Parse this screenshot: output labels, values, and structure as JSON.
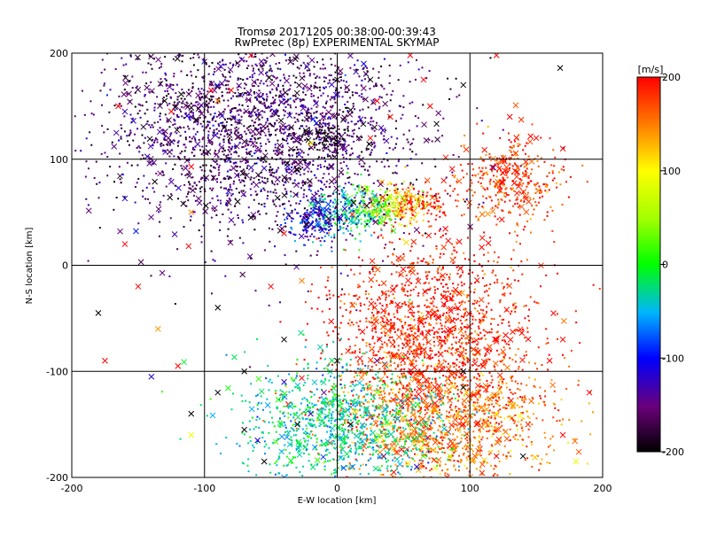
{
  "chart_data": {
    "type": "scatter",
    "title": "Tromsø 20171205 00:38:00-00:39:43",
    "subtitle": "RwPretec (8p) EXPERIMENTAL SKYMAP",
    "xlabel": "E-W location [km]",
    "ylabel": "N-S location [km]",
    "xlim": [
      -200,
      200
    ],
    "ylim": [
      -200,
      200
    ],
    "xticks": [
      "-200",
      "-100",
      "0",
      "100",
      "200"
    ],
    "yticks": [
      "-200",
      "-100",
      "0",
      "100",
      "200"
    ],
    "grid": true,
    "colorbar": {
      "label": "[m/s]",
      "range": [
        -200,
        200
      ],
      "ticks": [
        "-200",
        "-100",
        "0",
        "100",
        "200"
      ],
      "colormap": "rainbow"
    },
    "clusters": [
      {
        "cx": 60,
        "cy": 58,
        "sx": 14,
        "sy": 8,
        "v": 190
      },
      {
        "cx": 45,
        "cy": 55,
        "sx": 10,
        "sy": 10,
        "v": 110
      },
      {
        "cx": 28,
        "cy": 55,
        "sx": 12,
        "sy": 10,
        "v": 20
      },
      {
        "cx": 5,
        "cy": 48,
        "sx": 14,
        "sy": 12,
        "v": -40
      },
      {
        "cx": -15,
        "cy": 45,
        "sx": 12,
        "sy": 12,
        "v": -110
      },
      {
        "cx": -8,
        "cy": 120,
        "sx": 8,
        "sy": 6,
        "v": -200
      },
      {
        "cx": 130,
        "cy": 80,
        "sx": 20,
        "sy": 20,
        "v": 180
      },
      {
        "cx": 70,
        "cy": -70,
        "sx": 40,
        "sy": 50,
        "v": 190
      },
      {
        "cx": 80,
        "cy": -150,
        "sx": 40,
        "sy": 30,
        "v": 150
      },
      {
        "cx": -60,
        "cy": 130,
        "sx": 60,
        "sy": 50,
        "v": -160
      },
      {
        "cx": 0,
        "cy": -150,
        "sx": 40,
        "sy": 30,
        "v": -30
      }
    ],
    "points": [
      {
        "x": -130,
        "y": 155,
        "v": -200,
        "m": "x"
      },
      {
        "x": -165,
        "y": 150,
        "v": 200,
        "m": "x"
      },
      {
        "x": -125,
        "y": 145,
        "v": 200,
        "m": "x"
      },
      {
        "x": -110,
        "y": 140,
        "v": -140,
        "m": "x"
      },
      {
        "x": -95,
        "y": 165,
        "v": 200,
        "m": "x"
      },
      {
        "x": -80,
        "y": 165,
        "v": 200,
        "m": "x"
      },
      {
        "x": -90,
        "y": 155,
        "v": 140,
        "m": "x"
      },
      {
        "x": -65,
        "y": 198,
        "v": 200,
        "m": "x"
      },
      {
        "x": 55,
        "y": 198,
        "v": 200,
        "m": "x"
      },
      {
        "x": 120,
        "y": 198,
        "v": 200,
        "m": "x"
      },
      {
        "x": 168,
        "y": 186,
        "v": -200,
        "m": "x"
      },
      {
        "x": -160,
        "y": 63,
        "v": -120,
        "m": "x"
      },
      {
        "x": -110,
        "y": 93,
        "v": 200,
        "m": "x"
      },
      {
        "x": -110,
        "y": 50,
        "v": 140,
        "m": "x"
      },
      {
        "x": -160,
        "y": 20,
        "v": 200,
        "m": "x"
      },
      {
        "x": -112,
        "y": 18,
        "v": 200,
        "m": "x"
      },
      {
        "x": -150,
        "y": -20,
        "v": 200,
        "m": "x"
      },
      {
        "x": -180,
        "y": -45,
        "v": -200,
        "m": "x"
      },
      {
        "x": -135,
        "y": -60,
        "v": 140,
        "m": "x"
      },
      {
        "x": -175,
        "y": -90,
        "v": 200,
        "m": "x"
      },
      {
        "x": -140,
        "y": -105,
        "v": -120,
        "m": "x"
      },
      {
        "x": -120,
        "y": -95,
        "v": 200,
        "m": "x"
      },
      {
        "x": -110,
        "y": -140,
        "v": -200,
        "m": "x"
      },
      {
        "x": -110,
        "y": -160,
        "v": 90,
        "m": "x"
      },
      {
        "x": -70,
        "y": -155,
        "v": -200,
        "m": "x"
      },
      {
        "x": -60,
        "y": -165,
        "v": -120,
        "m": "x"
      },
      {
        "x": -55,
        "y": -185,
        "v": -200,
        "m": "x"
      },
      {
        "x": -40,
        "y": -200,
        "v": -60,
        "m": "x"
      },
      {
        "x": -30,
        "y": -150,
        "v": -200,
        "m": "x"
      },
      {
        "x": -20,
        "y": -140,
        "v": -130,
        "m": "x"
      },
      {
        "x": 10,
        "y": -150,
        "v": -200,
        "m": "x"
      },
      {
        "x": 30,
        "y": -165,
        "v": 90,
        "m": "x"
      },
      {
        "x": 35,
        "y": -180,
        "v": -150,
        "m": "x"
      },
      {
        "x": 60,
        "y": -190,
        "v": -120,
        "m": "x"
      },
      {
        "x": 65,
        "y": -180,
        "v": 20,
        "m": "x"
      },
      {
        "x": 85,
        "y": -180,
        "v": 60,
        "m": "x"
      },
      {
        "x": 95,
        "y": -150,
        "v": 200,
        "m": "x"
      },
      {
        "x": 105,
        "y": -150,
        "v": 200,
        "m": "x"
      },
      {
        "x": 120,
        "y": -180,
        "v": 200,
        "m": "x"
      },
      {
        "x": 140,
        "y": -180,
        "v": -200,
        "m": "x"
      },
      {
        "x": 180,
        "y": -185,
        "v": 90,
        "m": "x"
      },
      {
        "x": 190,
        "y": -120,
        "v": 200,
        "m": "x"
      },
      {
        "x": 170,
        "y": -70,
        "v": 200,
        "m": "x"
      },
      {
        "x": 160,
        "y": -90,
        "v": 200,
        "m": "x"
      },
      {
        "x": 120,
        "y": -70,
        "v": 200,
        "m": "x"
      },
      {
        "x": 110,
        "y": -95,
        "v": 200,
        "m": "x"
      },
      {
        "x": 95,
        "y": -100,
        "v": -200,
        "m": "x"
      },
      {
        "x": 95,
        "y": -115,
        "v": -200,
        "m": "x"
      },
      {
        "x": 30,
        "y": -120,
        "v": 60,
        "m": "x"
      },
      {
        "x": -10,
        "y": -120,
        "v": -150,
        "m": "x"
      },
      {
        "x": -40,
        "y": -110,
        "v": -120,
        "m": "x"
      },
      {
        "x": -70,
        "y": -100,
        "v": -200,
        "m": "x"
      },
      {
        "x": -90,
        "y": -120,
        "v": -200,
        "m": "x"
      },
      {
        "x": -90,
        "y": -40,
        "v": -200,
        "m": "x"
      },
      {
        "x": -50,
        "y": -20,
        "v": 200,
        "m": "x"
      },
      {
        "x": -40,
        "y": 30,
        "v": 200,
        "m": "x"
      },
      {
        "x": -65,
        "y": 45,
        "v": -200,
        "m": "x"
      },
      {
        "x": -75,
        "y": 60,
        "v": -200,
        "m": "x"
      },
      {
        "x": -30,
        "y": 90,
        "v": -200,
        "m": "x"
      },
      {
        "x": -20,
        "y": 115,
        "v": 100,
        "m": "x"
      },
      {
        "x": -85,
        "y": 130,
        "v": -200,
        "m": "x"
      },
      {
        "x": 0,
        "y": 175,
        "v": -200,
        "m": "x"
      },
      {
        "x": 25,
        "y": 175,
        "v": -200,
        "m": "x"
      },
      {
        "x": 30,
        "y": 155,
        "v": 200,
        "m": "x"
      },
      {
        "x": 65,
        "y": 175,
        "v": 200,
        "m": "x"
      },
      {
        "x": 95,
        "y": 170,
        "v": -200,
        "m": "x"
      },
      {
        "x": 70,
        "y": 150,
        "v": 200,
        "m": "x"
      },
      {
        "x": 130,
        "y": 140,
        "v": 200,
        "m": "x"
      },
      {
        "x": 150,
        "y": 120,
        "v": 200,
        "m": "x"
      },
      {
        "x": 170,
        "y": 110,
        "v": 200,
        "m": "x"
      },
      {
        "x": 20,
        "y": 190,
        "v": -100,
        "m": "x"
      },
      {
        "x": 25,
        "y": 120,
        "v": 200,
        "m": "x"
      },
      {
        "x": 40,
        "y": 140,
        "v": 200,
        "m": "x"
      },
      {
        "x": 0,
        "y": -90,
        "v": -200,
        "m": "x"
      },
      {
        "x": 30,
        "y": -90,
        "v": -150,
        "m": "x"
      },
      {
        "x": -40,
        "y": -70,
        "v": -200,
        "m": "x"
      },
      {
        "x": 170,
        "y": -160,
        "v": 200,
        "m": "x"
      }
    ]
  }
}
